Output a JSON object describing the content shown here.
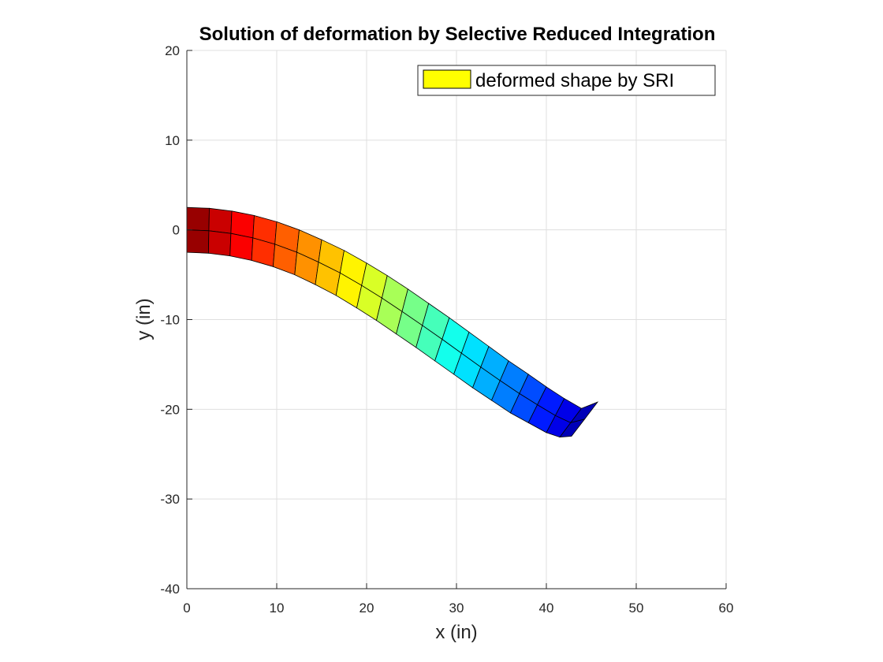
{
  "chart_data": {
    "type": "mesh",
    "title": "Solution of deformation by Selective Reduced Integration",
    "xlabel": "x (in)",
    "ylabel": "y (in)",
    "xlim": [
      0,
      60
    ],
    "ylim": [
      -40,
      20
    ],
    "xticks": [
      "0",
      "10",
      "20",
      "30",
      "40",
      "50",
      "60"
    ],
    "yticks": [
      "20",
      "10",
      "0",
      "-10",
      "-20",
      "-30",
      "-40"
    ],
    "grid": true,
    "legend": {
      "position": "top-right",
      "entries": [
        {
          "label": "deformed shape by SRI",
          "color": "#ffff00"
        }
      ]
    },
    "colormap": "jet",
    "mesh": {
      "elements_along_length": 20,
      "elements_through_thickness": 2,
      "top_edge": [
        [
          0,
          2.5
        ],
        [
          2.5,
          2.4
        ],
        [
          5.0,
          2.1
        ],
        [
          7.5,
          1.6
        ],
        [
          10.0,
          0.9
        ],
        [
          12.5,
          0.0
        ],
        [
          15.0,
          -1.1
        ],
        [
          17.5,
          -2.3
        ],
        [
          20.0,
          -3.7
        ],
        [
          22.3,
          -5.1
        ],
        [
          24.6,
          -6.6
        ],
        [
          26.9,
          -8.2
        ],
        [
          29.2,
          -9.8
        ],
        [
          31.4,
          -11.4
        ],
        [
          33.6,
          -13.0
        ],
        [
          35.8,
          -14.6
        ],
        [
          38.0,
          -16.1
        ],
        [
          40.0,
          -17.5
        ],
        [
          42.0,
          -18.8
        ],
        [
          43.9,
          -19.9
        ],
        [
          45.7,
          -19.2
        ]
      ],
      "bottom_edge": [
        [
          0,
          -2.5
        ],
        [
          2.4,
          -2.6
        ],
        [
          4.8,
          -2.9
        ],
        [
          7.2,
          -3.4
        ],
        [
          9.6,
          -4.1
        ],
        [
          12.0,
          -5.0
        ],
        [
          14.3,
          -6.1
        ],
        [
          16.6,
          -7.3
        ],
        [
          18.9,
          -8.7
        ],
        [
          21.1,
          -10.1
        ],
        [
          23.3,
          -11.6
        ],
        [
          25.5,
          -13.1
        ],
        [
          27.6,
          -14.6
        ],
        [
          29.7,
          -16.1
        ],
        [
          31.8,
          -17.6
        ],
        [
          33.9,
          -19.0
        ],
        [
          36.0,
          -20.4
        ],
        [
          38.0,
          -21.5
        ],
        [
          40.0,
          -22.6
        ],
        [
          41.5,
          -23.1
        ],
        [
          42.8,
          -23.0
        ]
      ]
    }
  }
}
